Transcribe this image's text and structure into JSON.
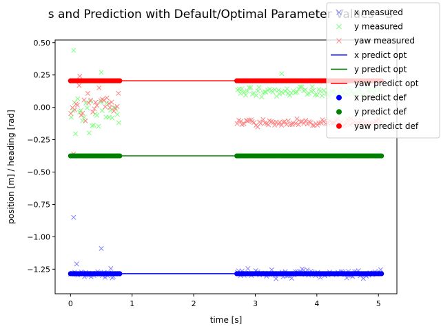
{
  "chart_data": {
    "type": "scatter",
    "title": "s and Prediction with Default/Optimal Parameter Values - S",
    "xlabel": "time [s]",
    "ylabel": "position [m] / heading [rad]",
    "xlim": [
      -0.25,
      5.3
    ],
    "ylim": [
      -1.44,
      0.52
    ],
    "xticks": [
      0,
      1,
      2,
      3,
      4,
      5
    ],
    "yticks": [
      0.5,
      0.25,
      0.0,
      -0.25,
      -0.5,
      -0.75,
      -1.0,
      -1.25
    ],
    "xtick_labels": [
      "0",
      "1",
      "2",
      "3",
      "4",
      "5"
    ],
    "ytick_labels": [
      "0.50",
      "0.25",
      "0.00",
      "−0.25",
      "−0.50",
      "−0.75",
      "−1.00",
      "−1.25"
    ],
    "grid": false,
    "legend_position": "upper right (overflowing plot)",
    "segments": [
      [
        0.0,
        0.8
      ],
      [
        2.7,
        5.05
      ]
    ],
    "series": [
      {
        "name": "x measured",
        "kind": "measured",
        "marker": "x",
        "color": "#8080ff",
        "base": -1.285,
        "outliers": [
          [
            0.05,
            -0.85
          ],
          [
            0.1,
            -1.21
          ],
          [
            0.5,
            -1.09
          ]
        ]
      },
      {
        "name": "y measured",
        "kind": "measured",
        "marker": "x",
        "color": "#80ff80",
        "base": 0.12,
        "outliers": [
          [
            0.05,
            0.44
          ],
          [
            0.5,
            0.27
          ],
          [
            3.43,
            0.26
          ]
        ]
      },
      {
        "name": "yaw measured",
        "kind": "measured",
        "marker": "x",
        "color": "#ff8080",
        "base": -0.12,
        "outliers": [
          [
            0.15,
            0.24
          ],
          [
            0.05,
            -0.36
          ]
        ]
      },
      {
        "name": "x predict opt",
        "kind": "line",
        "color": "#0000ff",
        "value": -1.285
      },
      {
        "name": "y predict opt",
        "kind": "line",
        "color": "#008000",
        "value": -0.375
      },
      {
        "name": "yaw predict opt",
        "kind": "line",
        "color": "#ff0000",
        "value": 0.205
      },
      {
        "name": "x predict def",
        "kind": "dots",
        "color": "#0000ff",
        "value": -1.285
      },
      {
        "name": "y predict def",
        "kind": "dots",
        "color": "#008000",
        "value": -0.375
      },
      {
        "name": "yaw predict def",
        "kind": "dots",
        "color": "#ff0000",
        "value": 0.205
      }
    ]
  }
}
